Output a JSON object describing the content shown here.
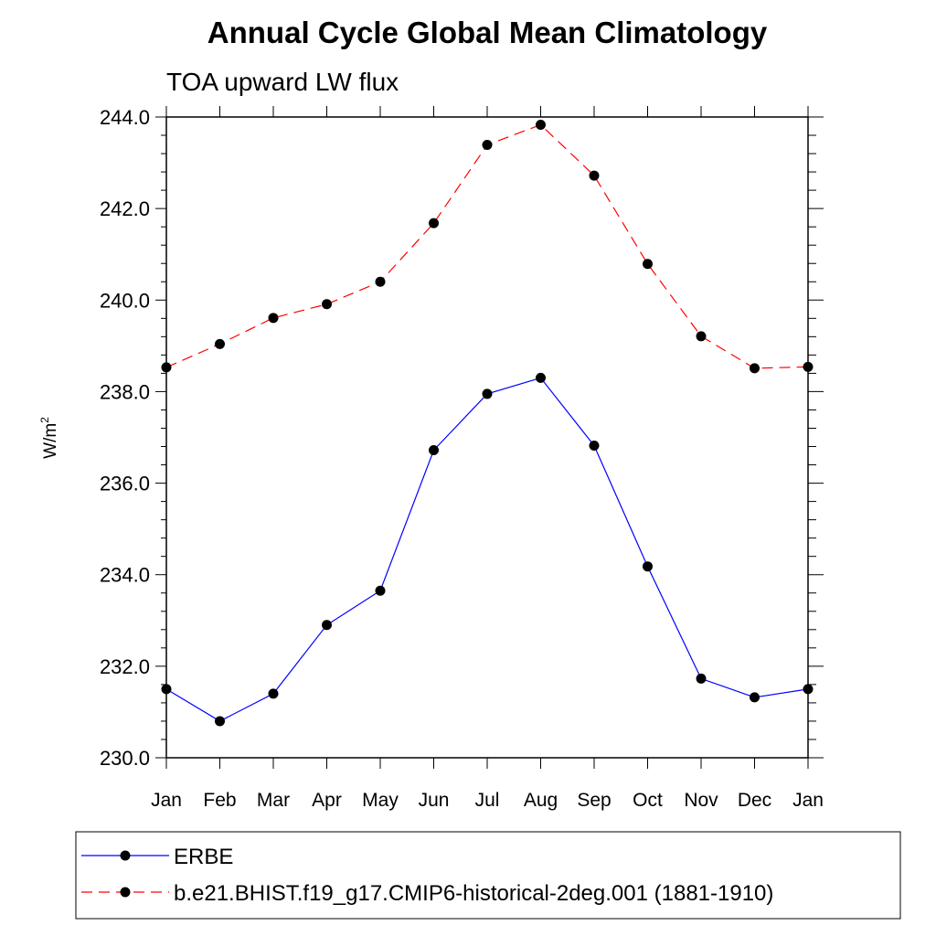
{
  "chart_data": {
    "type": "line",
    "title": "Annual Cycle Global Mean Climatology",
    "subtitle": "TOA upward LW flux",
    "ylabel": "W/m",
    "ylabel_superscript": "2",
    "ylim": [
      230.0,
      244.0
    ],
    "yticks": [
      "230.0",
      "232.0",
      "234.0",
      "236.0",
      "238.0",
      "240.0",
      "242.0",
      "244.0"
    ],
    "categories": [
      "Jan",
      "Feb",
      "Mar",
      "Apr",
      "May",
      "Jun",
      "Jul",
      "Aug",
      "Sep",
      "Oct",
      "Nov",
      "Dec",
      "Jan"
    ],
    "grid": false,
    "legend_position": "bottom",
    "series": [
      {
        "name": "ERBE",
        "color": "#0000ff",
        "dash": "solid",
        "values": [
          231.5,
          230.8,
          231.4,
          232.9,
          233.65,
          236.72,
          237.95,
          238.3,
          236.82,
          234.18,
          231.73,
          231.32,
          231.5
        ]
      },
      {
        "name": "b.e21.BHIST.f19_g17.CMIP6-historical-2deg.001 (1881-1910)",
        "color": "#ff0000",
        "dash": "dashed",
        "values": [
          238.53,
          239.04,
          239.61,
          239.91,
          240.4,
          241.68,
          243.39,
          243.83,
          242.72,
          240.79,
          239.21,
          238.51,
          238.54
        ]
      }
    ]
  }
}
